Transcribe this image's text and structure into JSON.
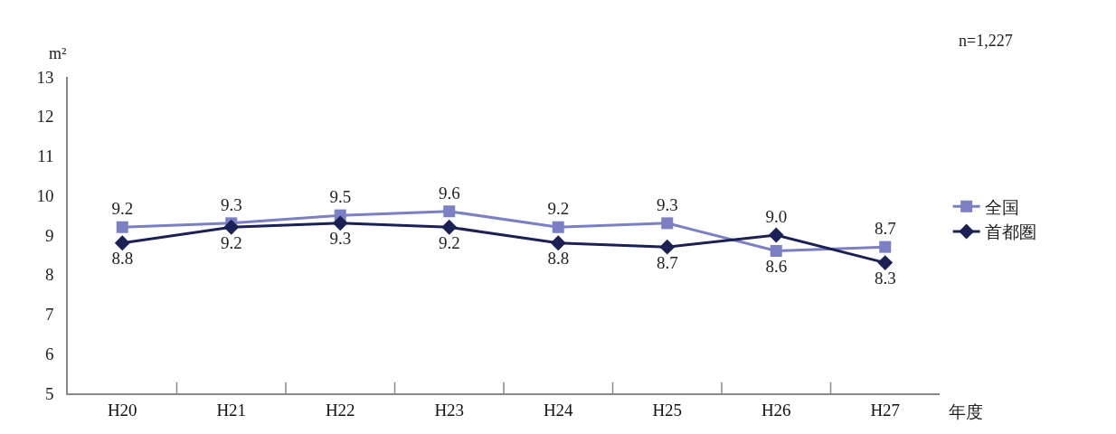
{
  "chart_data": {
    "type": "line",
    "ylabel": "m²",
    "xlabel": "年度",
    "categories": [
      "H20",
      "H21",
      "H22",
      "H23",
      "H24",
      "H25",
      "H26",
      "H27"
    ],
    "series": [
      {
        "name": "全国",
        "color": "#7b7fc4",
        "marker": "square",
        "values": [
          9.2,
          9.3,
          9.5,
          9.6,
          9.2,
          9.3,
          8.6,
          8.7
        ],
        "value_labels": [
          "9.2",
          "9.3",
          "9.5",
          "9.6",
          "9.2",
          "9.3",
          "8.6",
          "8.7"
        ]
      },
      {
        "name": "首都圏",
        "color": "#1c2155",
        "marker": "diamond",
        "values": [
          8.8,
          9.2,
          9.3,
          9.2,
          8.8,
          8.7,
          9.0,
          8.3
        ],
        "value_labels": [
          "8.8",
          "9.2",
          "9.3",
          "9.2",
          "8.8",
          "8.7",
          "9.0",
          "8.3"
        ]
      }
    ],
    "ylim": [
      5,
      13
    ],
    "yticks": [
      5,
      6,
      7,
      8,
      9,
      10,
      11,
      12,
      13
    ],
    "legend": "right",
    "line_style": "solid",
    "annotations": [
      "n=1,227"
    ]
  }
}
